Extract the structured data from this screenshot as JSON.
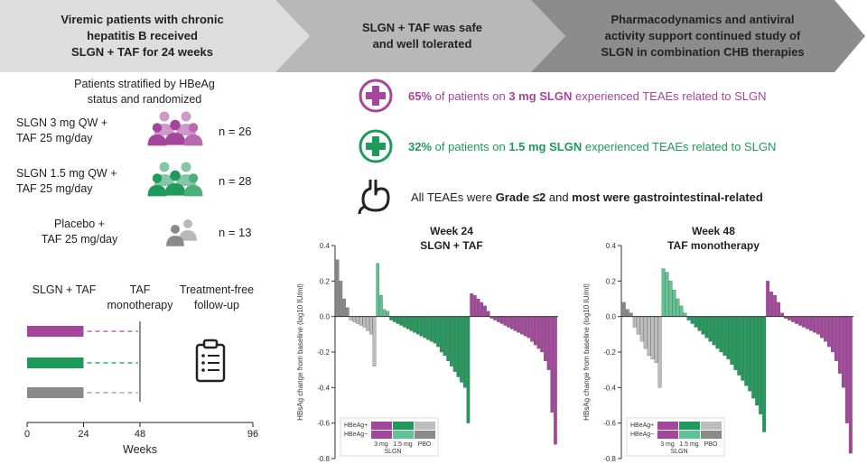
{
  "banners": [
    {
      "text": "Viremic patients with chronic\nhepatitis B received\nSLGN + TAF for 24 weeks",
      "color": "#dedede",
      "text_color": "#222222"
    },
    {
      "text": "SLGN + TAF was safe\nand well tolerated",
      "color": "#b8b8b8",
      "text_color": "#222222"
    },
    {
      "text": "Pharmacodynamics and antiviral\nactivity support continued study of\nSLGN in combination CHB therapies",
      "color": "#8c8c8c",
      "text_color": "#222222"
    }
  ],
  "stratified_text": "Patients stratified by HBeAg\nstatus and randomized",
  "arms": [
    {
      "label": "SLGN 3 mg QW +\nTAF 25 mg/day",
      "n": "n = 26",
      "color": "#a6459e",
      "icon": "people-group-icon"
    },
    {
      "label": "SLGN 1.5 mg QW +\nTAF 25 mg/day",
      "n": "n = 28",
      "color": "#1e9a5a",
      "icon": "people-group-icon"
    },
    {
      "label": "Placebo +\nTAF 25 mg/day",
      "n": "n = 13",
      "color": "#8a8a8a",
      "icon": "people-pair-icon"
    }
  ],
  "timeline": {
    "phases": [
      "SLGN + TAF",
      "TAF\nmonotherapy",
      "Treatment-free\nfollow-up"
    ],
    "ticks": [
      "0",
      "24",
      "48",
      "96"
    ],
    "xlabel": "Weeks",
    "icon": "clipboard-icon"
  },
  "safety": [
    {
      "icon": "plus-circle-icon",
      "color": "#a6459e",
      "parts": [
        {
          "t": "65%",
          "b": true
        },
        {
          "t": " of patients on ",
          "b": false
        },
        {
          "t": "3 mg SLGN",
          "b": true
        },
        {
          "t": " experienced TEAEs related to SLGN",
          "b": false
        }
      ]
    },
    {
      "icon": "plus-circle-icon",
      "color": "#1e9a5a",
      "parts": [
        {
          "t": "32%",
          "b": true
        },
        {
          "t": " of patients on ",
          "b": false
        },
        {
          "t": "1.5 mg SLGN",
          "b": true
        },
        {
          "t": " experienced TEAEs related to SLGN",
          "b": false
        }
      ]
    },
    {
      "icon": "stomach-icon",
      "color": "#222222",
      "parts": [
        {
          "t": "All TEAEs were ",
          "b": false
        },
        {
          "t": "Grade ≤2",
          "b": true
        },
        {
          "t": " and ",
          "b": false
        },
        {
          "t": "most were gastrointestinal-related",
          "b": true
        }
      ]
    }
  ],
  "ylabel": "HBsAg change from baseline (log10 IU/ml)",
  "legend": {
    "row1": "HBeAg+",
    "row2": "HBeAg−",
    "cols": [
      "3 mg",
      "1.5 mg",
      "PBO"
    ],
    "group": "SLGN"
  },
  "colors": {
    "purple": "#a6459e",
    "purple_light": "#c98cc3",
    "green": "#1e9a5a",
    "green_light": "#5cc592",
    "gray": "#8a8a8a",
    "gray_light": "#bdbdbd"
  },
  "chart_data": [
    {
      "type": "bar",
      "title": "Week 24\nSLGN + TAF",
      "ylim": [
        -0.8,
        0.4
      ],
      "yticks": [
        0.4,
        0.2,
        0.0,
        -0.2,
        -0.4,
        -0.6,
        -0.8
      ],
      "series": [
        {
          "name": "PBO HBeAg-",
          "values": [
            0.32,
            0.2,
            0.1,
            0.05
          ]
        },
        {
          "name": "PBO HBeAg+",
          "values": [
            -0.02,
            -0.03,
            -0.04,
            -0.05,
            -0.06,
            -0.08,
            -0.1,
            -0.28
          ]
        },
        {
          "name": "1.5 mg HBeAg-",
          "values": [
            0.3,
            0.12,
            0.04,
            0.03
          ]
        },
        {
          "name": "1.5 mg HBeAg+",
          "values": [
            -0.02,
            -0.03,
            -0.04,
            -0.05,
            -0.06,
            -0.07,
            -0.08,
            -0.09,
            -0.1,
            -0.11,
            -0.12,
            -0.13,
            -0.14,
            -0.15,
            -0.17,
            -0.2,
            -0.22,
            -0.25,
            -0.28,
            -0.31,
            -0.34,
            -0.37,
            -0.4,
            -0.6
          ]
        },
        {
          "name": "3 mg HBeAg-",
          "values": [
            0.13,
            0.12,
            0.1,
            0.08,
            0.06,
            0.03
          ]
        },
        {
          "name": "3 mg HBeAg+",
          "values": [
            -0.01,
            -0.02,
            -0.03,
            -0.04,
            -0.05,
            -0.06,
            -0.07,
            -0.08,
            -0.09,
            -0.1,
            -0.11,
            -0.12,
            -0.14,
            -0.16,
            -0.18,
            -0.2,
            -0.25,
            -0.3,
            -0.54,
            -0.72
          ]
        }
      ]
    },
    {
      "type": "bar",
      "title": "Week 48\nTAF monotherapy",
      "ylim": [
        -0.8,
        0.4
      ],
      "yticks": [
        0.4,
        0.2,
        0.0,
        -0.2,
        -0.4,
        -0.6,
        -0.8
      ],
      "series": [
        {
          "name": "PBO HBeAg-",
          "values": [
            0.08,
            0.04,
            0.02
          ]
        },
        {
          "name": "PBO HBeAg+",
          "values": [
            -0.06,
            -0.1,
            -0.14,
            -0.18,
            -0.22,
            -0.24,
            -0.26,
            -0.4
          ]
        },
        {
          "name": "1.5 mg HBeAg-",
          "values": [
            0.27,
            0.25,
            0.2,
            0.15,
            0.1,
            0.06,
            0.02
          ]
        },
        {
          "name": "1.5 mg HBeAg+",
          "values": [
            -0.02,
            -0.04,
            -0.06,
            -0.08,
            -0.1,
            -0.12,
            -0.14,
            -0.16,
            -0.18,
            -0.2,
            -0.22,
            -0.24,
            -0.27,
            -0.3,
            -0.33,
            -0.36,
            -0.39,
            -0.42,
            -0.46,
            -0.5,
            -0.55,
            -0.65
          ]
        },
        {
          "name": "3 mg HBeAg-",
          "values": [
            0.2,
            0.14,
            0.12,
            0.08,
            0.02
          ]
        },
        {
          "name": "3 mg HBeAg+",
          "values": [
            -0.01,
            -0.02,
            -0.03,
            -0.04,
            -0.05,
            -0.06,
            -0.07,
            -0.08,
            -0.09,
            -0.1,
            -0.12,
            -0.14,
            -0.17,
            -0.2,
            -0.25,
            -0.32,
            -0.4,
            -0.6,
            -0.77
          ]
        }
      ]
    }
  ]
}
